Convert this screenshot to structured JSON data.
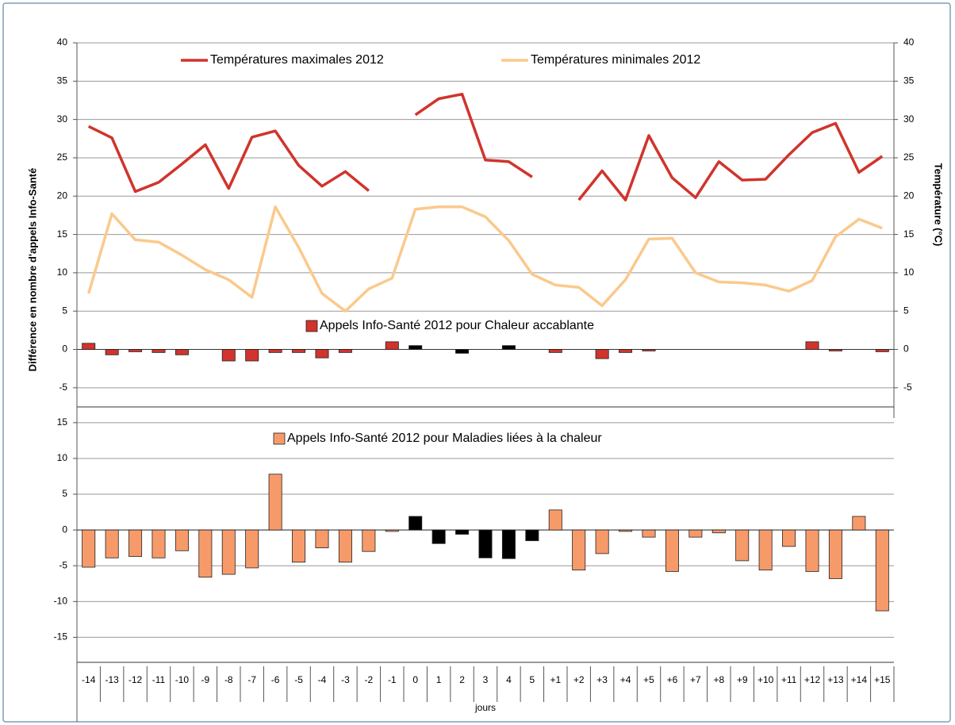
{
  "chart_data": [
    {
      "type": "combo",
      "ylabel_right": "Température (°C)",
      "ylim": [
        -7.5,
        40
      ],
      "yticks": [
        -5,
        0,
        5,
        10,
        15,
        20,
        25,
        30,
        35,
        40
      ],
      "grid": true,
      "series": [
        {
          "name": "Températures maximales 2012",
          "type": "line",
          "color": "#d0342c",
          "values": [
            29.1,
            27.6,
            20.6,
            21.8,
            24.2,
            26.7,
            21.0,
            27.7,
            28.5,
            24.0,
            21.3,
            23.2,
            20.7,
            null,
            30.6,
            32.7,
            33.3,
            24.7,
            24.5,
            22.5,
            null,
            19.5,
            23.3,
            19.5,
            27.9,
            22.4,
            19.8,
            24.5,
            22.1,
            22.2,
            25.4,
            28.3,
            29.5,
            23.1,
            25.2
          ]
        },
        {
          "name": "Températures minimales 2012",
          "type": "line",
          "color": "#fbc98c",
          "values": [
            7.3,
            17.7,
            14.3,
            14.0,
            12.3,
            10.4,
            9.1,
            6.8,
            18.6,
            13.3,
            7.3,
            5.0,
            7.9,
            9.3,
            18.3,
            18.6,
            18.6,
            17.3,
            14.2,
            9.8,
            8.4,
            8.1,
            5.7,
            9.1,
            14.4,
            14.5,
            10.0,
            8.8,
            8.7,
            8.4,
            7.6,
            9.0,
            14.7,
            17.0,
            15.8
          ]
        },
        {
          "name": "Appels Info-Santé 2012 pour Chaleur accablante",
          "type": "bar",
          "color": "#d0342c",
          "values": [
            0.8,
            -0.7,
            -0.3,
            -0.4,
            -0.7,
            0,
            -1.5,
            -1.5,
            -0.4,
            -0.4,
            -1.1,
            -0.4,
            0,
            1.0,
            0.5,
            0,
            -0.5,
            0,
            0.5,
            0,
            -0.4,
            0,
            -1.2,
            -0.4,
            -0.2,
            0,
            0,
            0,
            0,
            0,
            0,
            1.0,
            -0.2,
            0,
            -0.3
          ],
          "colors": [
            "#d0342c",
            "#d0342c",
            "#d0342c",
            "#d0342c",
            "#d0342c",
            "#d0342c",
            "#d0342c",
            "#d0342c",
            "#d0342c",
            "#d0342c",
            "#d0342c",
            "#d0342c",
            "#d0342c",
            "#d0342c",
            "#000000",
            "#000000",
            "#000000",
            "#000000",
            "#000000",
            "#000000",
            "#d0342c",
            "#d0342c",
            "#d0342c",
            "#d0342c",
            "#d0342c",
            "#d0342c",
            "#d0342c",
            "#d0342c",
            "#d0342c",
            "#d0342c",
            "#d0342c",
            "#d0342c",
            "#d0342c",
            "#d0342c",
            "#d0342c"
          ]
        }
      ]
    },
    {
      "type": "bar",
      "ylabel": "Différence en nombre d'appels  Info-Santé",
      "xlabel": "jours",
      "categories": [
        "-14",
        "-13",
        "-12",
        "-11",
        "-10",
        "-9",
        "-8",
        "-7",
        "-6",
        "-5",
        "-4",
        "-3",
        "-2",
        "-1",
        "0",
        "1",
        "2",
        "3",
        "4",
        "5",
        "+1",
        "+2",
        "+3",
        "+4",
        "+5",
        "+6",
        "+7",
        "+8",
        "+9",
        "+10",
        "+11",
        "+12",
        "+13",
        "+14",
        "+15"
      ],
      "ylim": [
        -18.5,
        17.2
      ],
      "yticks": [
        -15,
        -10,
        -5,
        0,
        5,
        10,
        15
      ],
      "grid": true,
      "series": [
        {
          "name": "Appels Info-Santé 2012 pour Maladies liées à la chaleur",
          "type": "bar",
          "color": "#f79a6a",
          "values": [
            -5.2,
            -3.9,
            -3.7,
            -3.9,
            -2.9,
            -6.6,
            -6.2,
            -5.3,
            7.8,
            -4.5,
            -2.5,
            -4.5,
            -3.0,
            -0.2,
            1.9,
            -1.9,
            -0.6,
            -3.9,
            -4.0,
            -1.5,
            2.8,
            -5.6,
            -3.3,
            -0.2,
            -1.0,
            -5.8,
            -1.0,
            -0.4,
            -4.3,
            -5.6,
            -2.3,
            -5.8,
            -6.8,
            1.9,
            -11.3
          ],
          "colors": [
            "#f79a6a",
            "#f79a6a",
            "#f79a6a",
            "#f79a6a",
            "#f79a6a",
            "#f79a6a",
            "#f79a6a",
            "#f79a6a",
            "#f79a6a",
            "#f79a6a",
            "#f79a6a",
            "#f79a6a",
            "#f79a6a",
            "#f79a6a",
            "#000000",
            "#000000",
            "#000000",
            "#000000",
            "#000000",
            "#000000",
            "#f79a6a",
            "#f79a6a",
            "#f79a6a",
            "#f79a6a",
            "#f79a6a",
            "#f79a6a",
            "#f79a6a",
            "#f79a6a",
            "#f79a6a",
            "#f79a6a",
            "#f79a6a",
            "#f79a6a",
            "#f79a6a",
            "#f79a6a",
            "#f79a6a"
          ]
        }
      ]
    }
  ]
}
